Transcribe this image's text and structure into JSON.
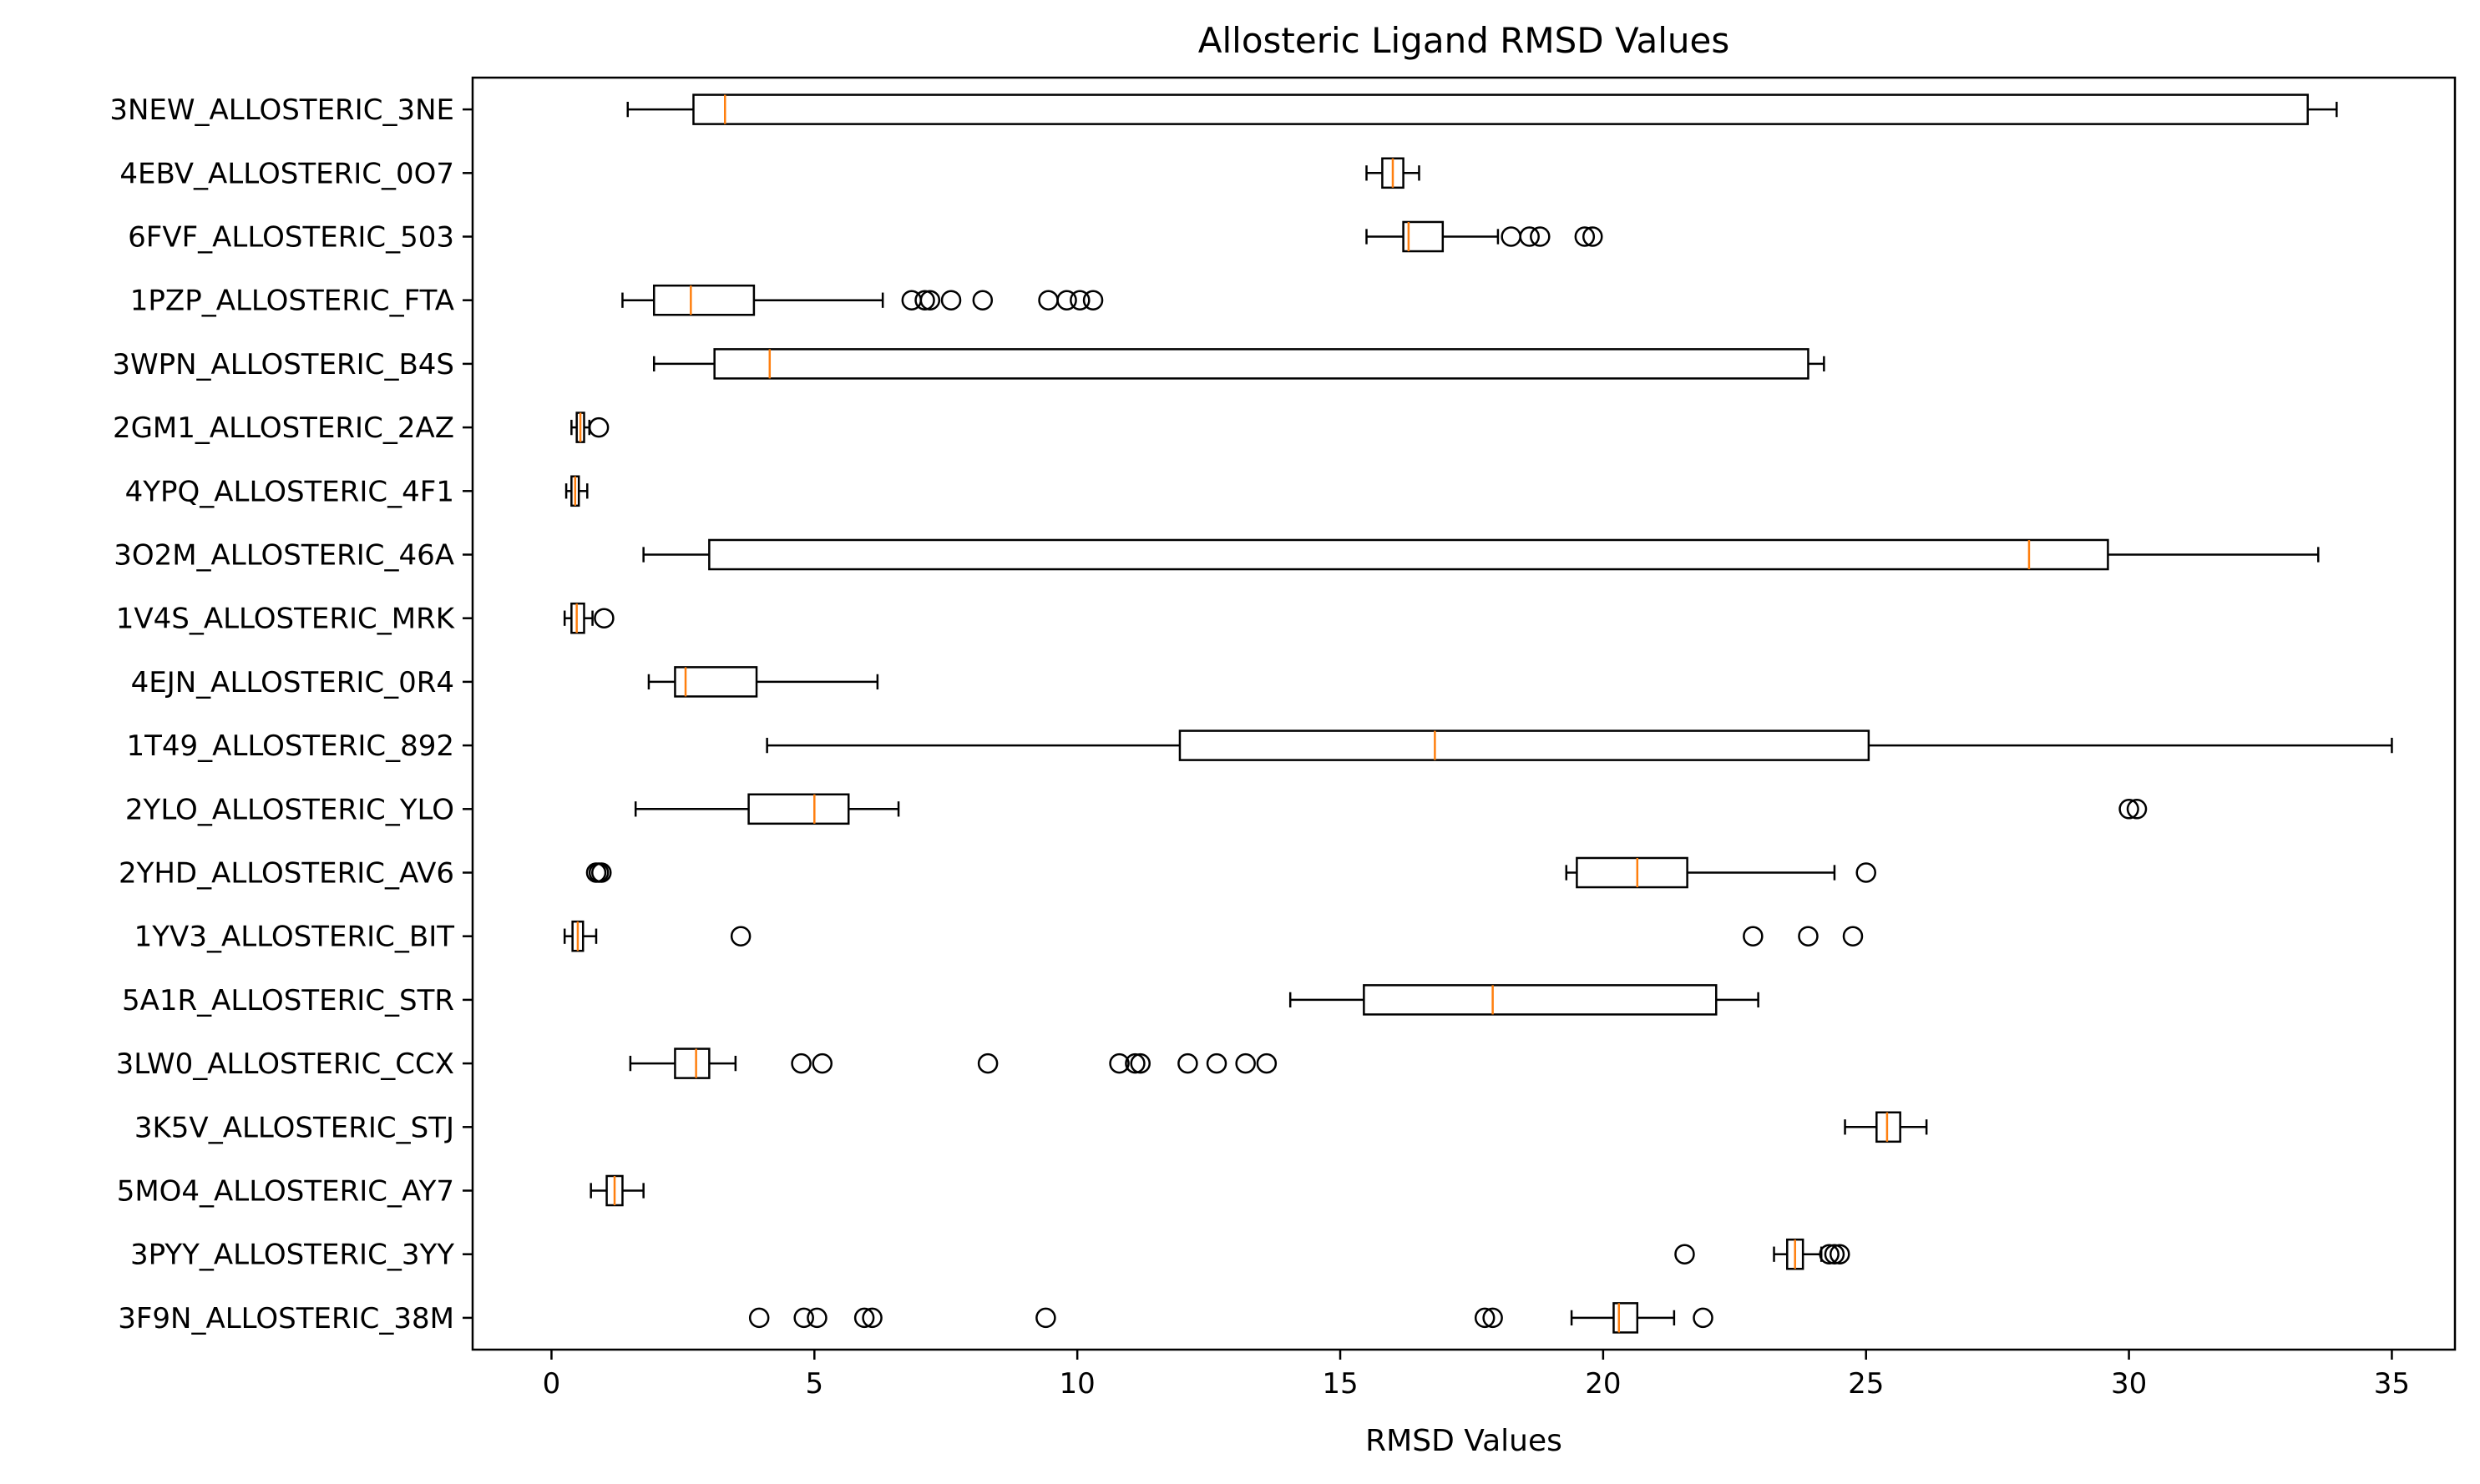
{
  "chart_data": {
    "type": "boxplot",
    "orientation": "horizontal",
    "title": "Allosteric Ligand RMSD Values",
    "xlabel": "RMSD Values",
    "ylabel": "",
    "xlim": [
      -1.5,
      36.2
    ],
    "xticks": [
      0,
      5,
      10,
      15,
      20,
      25,
      30,
      35
    ],
    "grid": false,
    "colors": {
      "box": "#000000",
      "median": "#ff7f0e",
      "background": "#ffffff"
    },
    "series": [
      {
        "label": "3NEW_ALLOSTERIC_3NE",
        "whisker_low": 1.45,
        "q1": 2.7,
        "median": 3.3,
        "q3": 33.4,
        "whisker_high": 33.95,
        "outliers": []
      },
      {
        "label": "4EBV_ALLOSTERIC_0O7",
        "whisker_low": 15.5,
        "q1": 15.8,
        "median": 16.0,
        "q3": 16.2,
        "whisker_high": 16.5,
        "outliers": []
      },
      {
        "label": "6FVF_ALLOSTERIC_503",
        "whisker_low": 15.5,
        "q1": 16.2,
        "median": 16.3,
        "q3": 16.95,
        "whisker_high": 18.0,
        "outliers": [
          18.25,
          18.6,
          18.8,
          19.65,
          19.8
        ]
      },
      {
        "label": "1PZP_ALLOSTERIC_FTA",
        "whisker_low": 1.35,
        "q1": 1.95,
        "median": 2.65,
        "q3": 3.85,
        "whisker_high": 6.3,
        "outliers": [
          6.85,
          7.1,
          7.2,
          7.6,
          8.2,
          9.45,
          9.8,
          10.05,
          10.3
        ]
      },
      {
        "label": "3WPN_ALLOSTERIC_B4S",
        "whisker_low": 1.95,
        "q1": 3.1,
        "median": 4.15,
        "q3": 23.9,
        "whisker_high": 24.2,
        "outliers": []
      },
      {
        "label": "2GM1_ALLOSTERIC_2AZ",
        "whisker_low": 0.38,
        "q1": 0.48,
        "median": 0.55,
        "q3": 0.62,
        "whisker_high": 0.72,
        "outliers": [
          0.9
        ]
      },
      {
        "label": "4YPQ_ALLOSTERIC_4F1",
        "whisker_low": 0.28,
        "q1": 0.38,
        "median": 0.45,
        "q3": 0.52,
        "whisker_high": 0.68,
        "outliers": []
      },
      {
        "label": "3O2M_ALLOSTERIC_46A",
        "whisker_low": 1.75,
        "q1": 3.0,
        "median": 28.1,
        "q3": 29.6,
        "whisker_high": 33.6,
        "outliers": []
      },
      {
        "label": "1V4S_ALLOSTERIC_MRK",
        "whisker_low": 0.25,
        "q1": 0.38,
        "median": 0.48,
        "q3": 0.62,
        "whisker_high": 0.78,
        "outliers": [
          1.0
        ]
      },
      {
        "label": "4EJN_ALLOSTERIC_0R4",
        "whisker_low": 1.85,
        "q1": 2.35,
        "median": 2.55,
        "q3": 3.9,
        "whisker_high": 6.2,
        "outliers": []
      },
      {
        "label": "1T49_ALLOSTERIC_892",
        "whisker_low": 4.1,
        "q1": 11.95,
        "median": 16.8,
        "q3": 25.05,
        "whisker_high": 35.0,
        "outliers": []
      },
      {
        "label": "2YLO_ALLOSTERIC_YLO",
        "whisker_low": 1.6,
        "q1": 3.75,
        "median": 5.0,
        "q3": 5.65,
        "whisker_high": 6.6,
        "outliers": [
          30.0,
          30.15
        ]
      },
      {
        "label": "2YHD_ALLOSTERIC_AV6",
        "whisker_low": 19.3,
        "q1": 19.5,
        "median": 20.65,
        "q3": 21.6,
        "whisker_high": 24.4,
        "outliers": [
          0.85,
          0.9,
          0.95,
          25.0
        ]
      },
      {
        "label": "1YV3_ALLOSTERIC_BIT",
        "whisker_low": 0.25,
        "q1": 0.4,
        "median": 0.5,
        "q3": 0.6,
        "whisker_high": 0.85,
        "outliers": [
          3.6,
          22.85,
          23.9,
          24.75
        ]
      },
      {
        "label": "5A1R_ALLOSTERIC_STR",
        "whisker_low": 14.05,
        "q1": 15.45,
        "median": 17.9,
        "q3": 22.15,
        "whisker_high": 22.95,
        "outliers": []
      },
      {
        "label": "3LW0_ALLOSTERIC_CCX",
        "whisker_low": 1.5,
        "q1": 2.35,
        "median": 2.75,
        "q3": 3.0,
        "whisker_high": 3.5,
        "outliers": [
          4.75,
          5.15,
          8.3,
          10.8,
          11.1,
          11.2,
          12.1,
          12.65,
          13.2,
          13.6
        ]
      },
      {
        "label": "3K5V_ALLOSTERIC_STJ",
        "whisker_low": 24.6,
        "q1": 25.2,
        "median": 25.4,
        "q3": 25.65,
        "whisker_high": 26.15,
        "outliers": []
      },
      {
        "label": "5MO4_ALLOSTERIC_AY7",
        "whisker_low": 0.75,
        "q1": 1.05,
        "median": 1.2,
        "q3": 1.35,
        "whisker_high": 1.75,
        "outliers": []
      },
      {
        "label": "3PYY_ALLOSTERIC_3YY",
        "whisker_low": 23.25,
        "q1": 23.5,
        "median": 23.65,
        "q3": 23.8,
        "whisker_high": 24.15,
        "outliers": [
          21.55,
          24.3,
          24.4,
          24.5
        ]
      },
      {
        "label": "3F9N_ALLOSTERIC_38M",
        "whisker_low": 19.4,
        "q1": 20.2,
        "median": 20.3,
        "q3": 20.65,
        "whisker_high": 21.35,
        "outliers": [
          3.95,
          4.8,
          5.05,
          5.95,
          6.1,
          9.4,
          17.75,
          17.9,
          21.9
        ]
      }
    ]
  }
}
